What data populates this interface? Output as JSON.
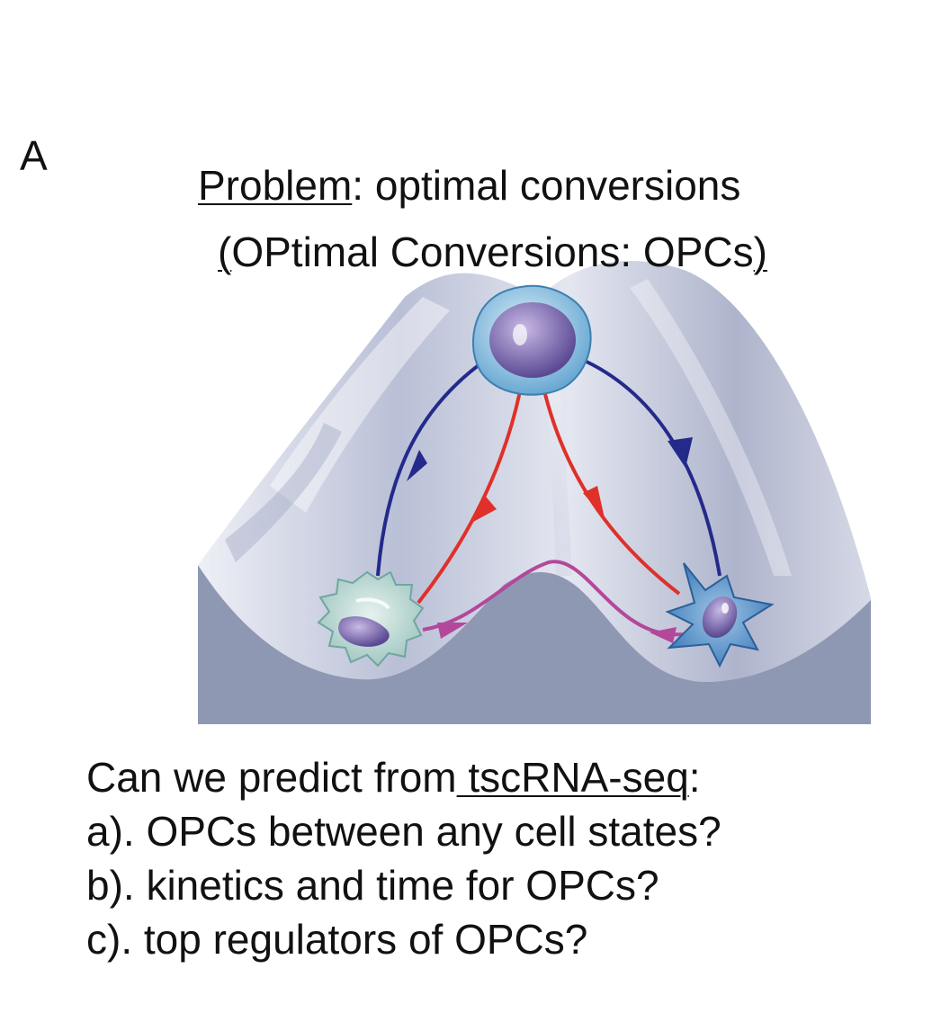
{
  "panel_label": "A",
  "title": {
    "underlined": "Problem",
    "rest": ": optimal conversions"
  },
  "subtitle": {
    "open": "(",
    "middle": "OPtimal Conversions: OPCs",
    "close": ")"
  },
  "questions": {
    "intro_start": "Can we predict from",
    "intro_link": " tscRNA-seq",
    "intro_end": ":",
    "items": [
      "a). OPCs between any cell states?",
      "b). kinetics and time for OPCs?",
      "c). top regulators of OPCs?"
    ]
  },
  "colors": {
    "landscape_back": "#c9ccdb",
    "landscape_front": "#8f98b3",
    "arrow_blue": "#232a8a",
    "arrow_red": "#e0302a",
    "arrow_magenta": "#b3489a"
  },
  "icons": [
    "stem-cell-icon",
    "macrophage-cell-icon",
    "fibroblast-cell-icon"
  ]
}
